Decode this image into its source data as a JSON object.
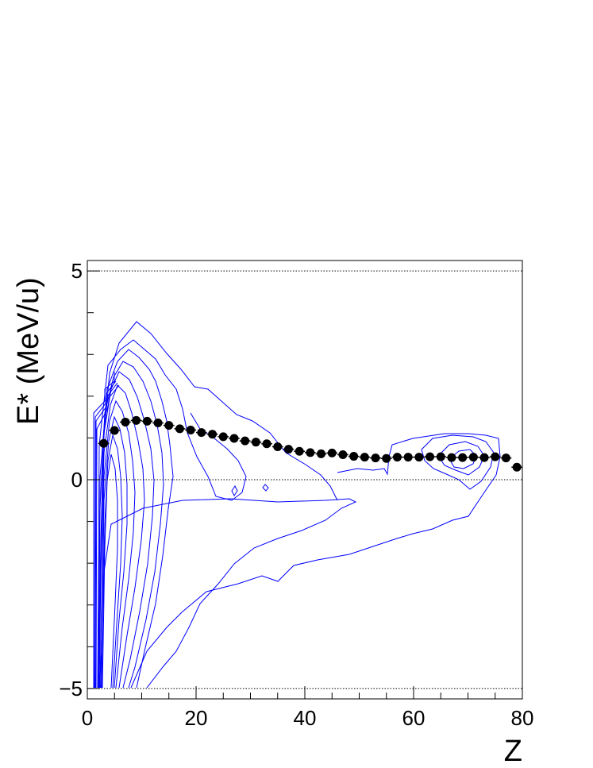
{
  "chart_data": {
    "type": "scatter",
    "title": "",
    "xlabel": "Z",
    "ylabel": "E* (MeV/u)",
    "xlim": [
      0,
      80
    ],
    "ylim": [
      -5.25,
      5.25
    ],
    "x_ticks": [
      "0",
      "20",
      "40",
      "60",
      "80"
    ],
    "y_ticks": [
      "−5",
      "0",
      "5"
    ],
    "reference_lines_y": [
      -5,
      0,
      5
    ],
    "grid": false,
    "background_contours": {
      "type": "contour",
      "color": "#0000ff",
      "description_levels": 20
    },
    "series": [
      {
        "color": "#000000",
        "marker": "circle",
        "x": [
          3,
          5,
          7,
          9,
          11,
          13,
          15,
          17,
          19,
          21,
          23,
          25,
          27,
          29,
          31,
          33,
          35,
          37,
          39,
          41,
          43,
          45,
          47,
          49,
          51,
          53,
          55,
          57,
          59,
          61,
          63,
          65,
          67,
          69,
          71,
          73,
          75,
          77,
          79
        ],
        "y": [
          0.87,
          1.18,
          1.38,
          1.42,
          1.4,
          1.36,
          1.3,
          1.22,
          1.19,
          1.13,
          1.09,
          1.03,
          0.99,
          0.93,
          0.9,
          0.86,
          0.79,
          0.73,
          0.68,
          0.65,
          0.62,
          0.64,
          0.6,
          0.56,
          0.54,
          0.52,
          0.51,
          0.54,
          0.54,
          0.54,
          0.55,
          0.55,
          0.53,
          0.53,
          0.54,
          0.53,
          0.55,
          0.52,
          0.3
        ]
      }
    ]
  }
}
